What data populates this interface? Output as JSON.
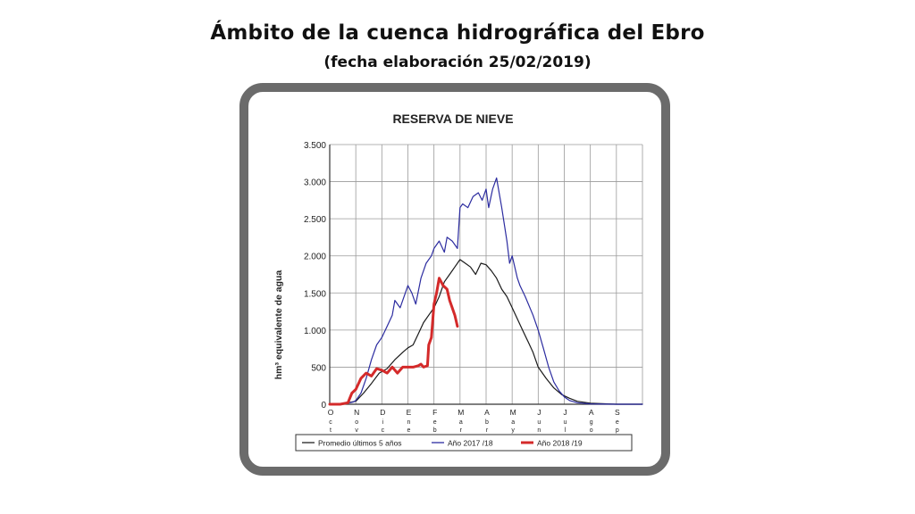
{
  "header": {
    "title": "Ámbito de la cuenca hidrográfica del Ebro",
    "subtitle": "(fecha elaboración 25/02/2019)"
  },
  "chart_data": {
    "type": "line",
    "title": "RESERVA DE NIEVE",
    "ylabel": "hm³ equivalente de agua",
    "xlabel": "",
    "ylim": [
      0,
      3500
    ],
    "yticks": [
      0,
      500,
      1000,
      1500,
      2000,
      2500,
      3000,
      3500
    ],
    "ytick_labels": [
      "0",
      "500",
      "1.000",
      "1.500",
      "2.000",
      "2.500",
      "3.000",
      "3.500"
    ],
    "months": [
      {
        "letter": "O",
        "sub": [
          "c",
          "t"
        ]
      },
      {
        "letter": "N",
        "sub": [
          "o",
          "v"
        ]
      },
      {
        "letter": "D",
        "sub": [
          "i",
          "c"
        ]
      },
      {
        "letter": "E",
        "sub": [
          "n",
          "e"
        ]
      },
      {
        "letter": "F",
        "sub": [
          "e",
          "b"
        ]
      },
      {
        "letter": "M",
        "sub": [
          "a",
          "r"
        ]
      },
      {
        "letter": "A",
        "sub": [
          "b",
          "r"
        ]
      },
      {
        "letter": "M",
        "sub": [
          "a",
          "y"
        ]
      },
      {
        "letter": "J",
        "sub": [
          "u",
          "n"
        ]
      },
      {
        "letter": "J",
        "sub": [
          "u",
          "l"
        ]
      },
      {
        "letter": "A",
        "sub": [
          "g",
          "o"
        ]
      },
      {
        "letter": "S",
        "sub": [
          "e",
          "p"
        ]
      }
    ],
    "grid": true,
    "legend_position": "bottom",
    "series": [
      {
        "name": "Promedio últimos 5 años",
        "color": "#1a1a1a",
        "x": [
          0,
          0.5,
          1.0,
          1.3,
          1.6,
          1.9,
          2.2,
          2.5,
          2.8,
          3.0,
          3.2,
          3.4,
          3.6,
          3.8,
          4.0,
          4.2,
          4.4,
          4.6,
          4.8,
          5.0,
          5.2,
          5.4,
          5.6,
          5.8,
          6.0,
          6.2,
          6.4,
          6.6,
          6.8,
          7.0,
          7.2,
          7.4,
          7.6,
          7.8,
          8.0,
          8.3,
          8.6,
          8.9,
          9.2,
          9.5,
          10.0,
          11.0,
          12.0
        ],
        "y": [
          0,
          10,
          40,
          150,
          280,
          420,
          480,
          600,
          700,
          760,
          800,
          950,
          1100,
          1200,
          1300,
          1450,
          1650,
          1750,
          1850,
          1950,
          1900,
          1850,
          1750,
          1900,
          1880,
          1800,
          1700,
          1550,
          1450,
          1300,
          1150,
          1000,
          850,
          700,
          500,
          350,
          220,
          130,
          80,
          40,
          15,
          0,
          0
        ]
      },
      {
        "name": "Año 2017 /18",
        "color": "#2c2ca0",
        "x": [
          0,
          0.6,
          0.9,
          1.0,
          1.2,
          1.4,
          1.6,
          1.8,
          2.0,
          2.2,
          2.4,
          2.5,
          2.7,
          2.9,
          3.0,
          3.15,
          3.3,
          3.5,
          3.6,
          3.7,
          3.9,
          4.0,
          4.2,
          4.4,
          4.5,
          4.7,
          4.9,
          5.0,
          5.1,
          5.3,
          5.5,
          5.7,
          5.85,
          6.0,
          6.1,
          6.25,
          6.4,
          6.6,
          6.8,
          6.9,
          7.0,
          7.2,
          7.3,
          7.5,
          7.8,
          8.0,
          8.2,
          8.4,
          8.6,
          8.8,
          9.0,
          9.2,
          9.5,
          10.0,
          11.0,
          12.0
        ],
        "y": [
          0,
          10,
          30,
          50,
          150,
          350,
          600,
          800,
          900,
          1050,
          1200,
          1400,
          1300,
          1500,
          1600,
          1500,
          1350,
          1700,
          1800,
          1900,
          2000,
          2100,
          2200,
          2050,
          2250,
          2200,
          2100,
          2650,
          2700,
          2650,
          2800,
          2850,
          2750,
          2900,
          2650,
          2900,
          3050,
          2650,
          2200,
          1900,
          2000,
          1700,
          1600,
          1450,
          1200,
          1000,
          750,
          500,
          300,
          180,
          100,
          50,
          20,
          5,
          0,
          0
        ]
      },
      {
        "name": "Año 2018 /19",
        "color": "#d42a2a",
        "x": [
          0,
          0.4,
          0.7,
          0.85,
          1.0,
          1.2,
          1.4,
          1.6,
          1.8,
          2.0,
          2.2,
          2.4,
          2.6,
          2.8,
          3.0,
          3.2,
          3.4,
          3.5,
          3.6,
          3.75,
          3.8,
          3.9,
          4.0,
          4.1,
          4.2,
          4.35,
          4.5,
          4.6,
          4.8,
          4.9
        ],
        "y": [
          0,
          0,
          20,
          150,
          200,
          350,
          420,
          380,
          480,
          460,
          420,
          500,
          420,
          500,
          500,
          500,
          520,
          540,
          500,
          520,
          800,
          900,
          1350,
          1500,
          1700,
          1600,
          1550,
          1400,
          1200,
          1050
        ]
      }
    ]
  }
}
